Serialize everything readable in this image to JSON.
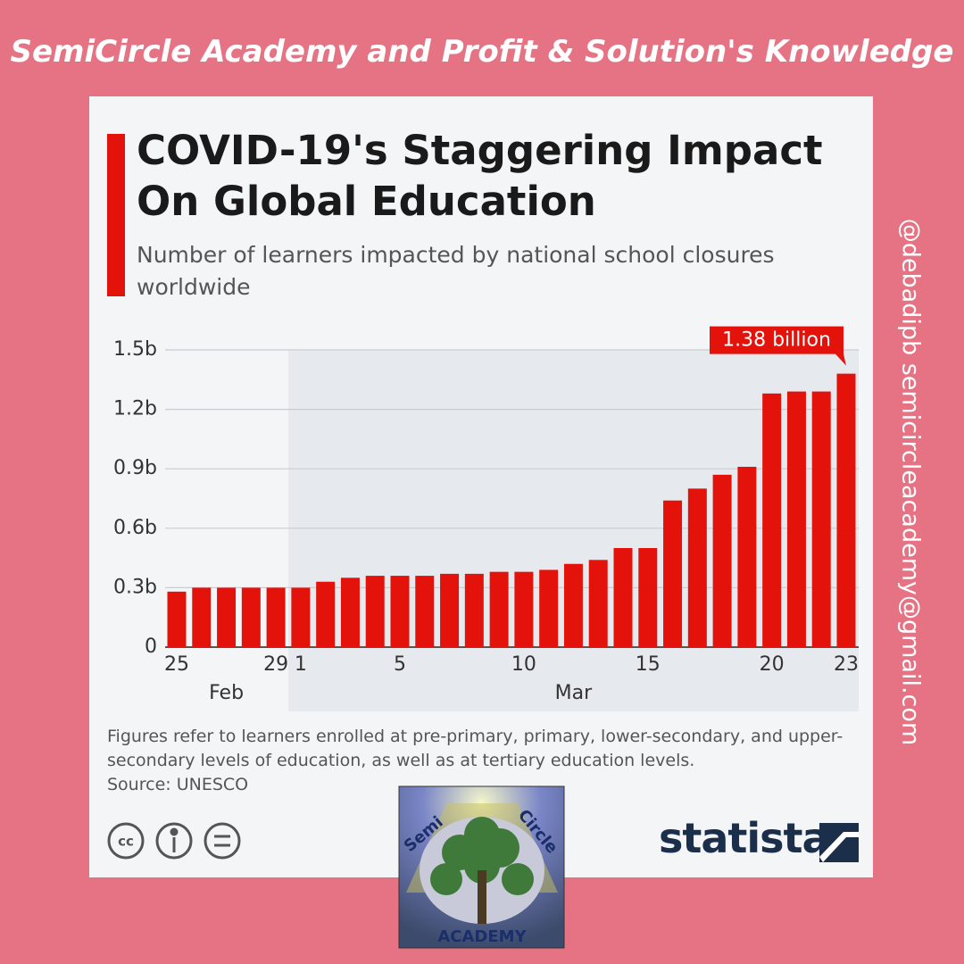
{
  "header": "SemiCircle Academy and Profit & Solution's Knowledge",
  "side_text": "@debadipb semicircleacademy@gmail.com",
  "brand": "statista",
  "logo": {
    "top_left": "Semi",
    "top_right": "Circle",
    "bottom": "ACADEMY"
  },
  "chart_data": {
    "type": "bar",
    "title": "COVID-19's Staggering Impact On Global Education",
    "subtitle": "Number of learners impacted by national school closures worldwide",
    "note": "Figures refer to learners enrolled at pre-primary, primary, lower-secondary, and upper-secondary levels of education, as well as at tertiary education levels.",
    "source": "Source: UNESCO",
    "categories": [
      "25",
      null,
      null,
      null,
      "29",
      "1",
      null,
      null,
      null,
      "5",
      null,
      null,
      null,
      null,
      "10",
      null,
      null,
      null,
      null,
      "15",
      null,
      null,
      null,
      null,
      "20",
      null,
      null,
      "23"
    ],
    "month_labels": [
      "Feb",
      "Mar"
    ],
    "values": [
      0.28,
      0.3,
      0.3,
      0.3,
      0.3,
      0.3,
      0.33,
      0.35,
      0.36,
      0.36,
      0.36,
      0.37,
      0.37,
      0.38,
      0.38,
      0.39,
      0.42,
      0.44,
      0.5,
      0.5,
      0.74,
      0.8,
      0.87,
      0.91,
      1.28,
      1.29,
      1.29,
      1.38
    ],
    "value_labels": [
      null,
      null,
      null,
      null,
      null,
      null,
      null,
      null,
      null,
      null,
      null,
      null,
      null,
      null,
      null,
      null,
      null,
      null,
      null,
      null,
      null,
      null,
      null,
      null,
      null,
      null,
      null,
      "1.38 billion"
    ],
    "color": "#e3120b",
    "ylim": [
      0,
      1.5
    ],
    "yticks": [
      0,
      {
        "value": 0.3,
        "label": "0.3b"
      },
      {
        "value": 0.6,
        "label": "0.6b"
      },
      {
        "value": 0.9,
        "label": "0.9b"
      },
      {
        "value": 1.2,
        "label": "1.2b"
      },
      {
        "value": 1.5,
        "label": "1.5b"
      }
    ],
    "grid": true
  }
}
